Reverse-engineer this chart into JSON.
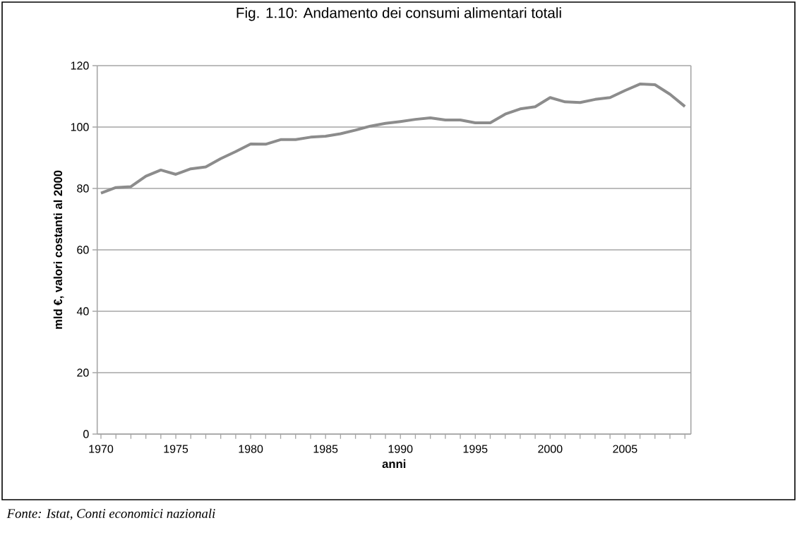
{
  "chart_data": {
    "type": "line",
    "title": "Fig. 1.10: Andamento dei consumi alimentari totali",
    "xlabel": "anni",
    "ylabel": "mld €, valori costanti al 2000",
    "annotations": [
      "*Fonte: Istat, Conti economici nazionali*"
    ],
    "categories": [
      "1970",
      null,
      null,
      null,
      null,
      "1975",
      null,
      null,
      null,
      null,
      "1980",
      null,
      null,
      null,
      null,
      "1985",
      null,
      null,
      null,
      null,
      "1990",
      null,
      null,
      null,
      null,
      "1995",
      null,
      null,
      null,
      null,
      "2000",
      null,
      null,
      null,
      null,
      "2005",
      null,
      null,
      null,
      null
    ],
    "series": [
      {
        "color": "#8c8c8c",
        "values": [
          78.5,
          80.3,
          80.6,
          84,
          86,
          84.6,
          86.4,
          87,
          89.7,
          92,
          94.5,
          94.4,
          95.9,
          95.9,
          96.7,
          97,
          97.8,
          99,
          100.3,
          101.2,
          101.8,
          102.5,
          103,
          102.3,
          102.3,
          101.4,
          101.4,
          104.2,
          105.9,
          106.6,
          109.6,
          108.2,
          108,
          109,
          109.6,
          111.9,
          114,
          113.8,
          110.7,
          106.7
        ]
      }
    ],
    "ylim": [
      0,
      120
    ],
    "yticks": [
      0,
      20,
      40,
      60,
      80,
      100,
      120
    ],
    "grid": "y",
    "marker": "none",
    "line_style": "solid"
  }
}
